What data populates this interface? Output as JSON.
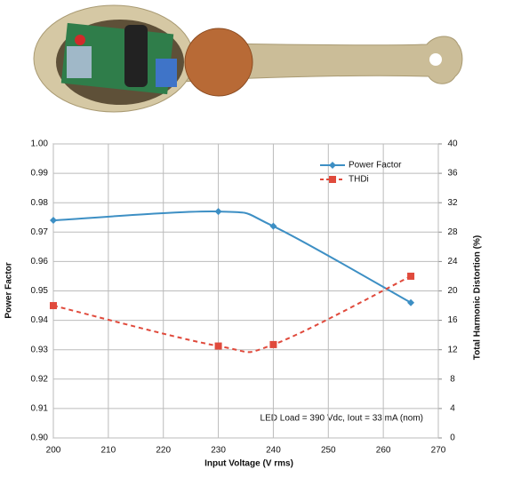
{
  "chart_data": {
    "type": "line",
    "x_label": "Input Voltage (V rms)",
    "y_label": "Power Factor",
    "y2_label": "Total Harmonic Distortion (%)",
    "annotation": "LED Load = 390 Vdc, Iout = 33 mA (nom)",
    "x": [
      200,
      230,
      240,
      265
    ],
    "series": [
      {
        "name": "Power Factor",
        "color": "#3d8fc4",
        "marker": "diamond",
        "dash": false,
        "values": [
          0.974,
          0.977,
          0.972,
          0.946
        ]
      },
      {
        "name": "THDi",
        "color": "#e04a3c",
        "marker": "square",
        "dash": true,
        "axis": "y2",
        "values": [
          18,
          12.5,
          12.7,
          22
        ]
      }
    ],
    "xlim": [
      200,
      270
    ],
    "xticks": [
      200,
      210,
      220,
      230,
      240,
      250,
      260,
      270
    ],
    "ylim": [
      0.9,
      1.0
    ],
    "yticks": [
      {
        "value": 0.9,
        "label": "0.90"
      },
      0.91,
      0.92,
      0.93,
      0.94,
      0.95,
      0.96,
      0.97,
      0.98,
      0.99,
      {
        "value": 1.0,
        "label": "1.00"
      }
    ],
    "y2lim": [
      0,
      40
    ],
    "y2ticks": [
      0,
      4,
      8,
      12,
      16,
      20,
      24,
      28,
      32,
      36,
      40
    ],
    "grid": true,
    "legend": "top-right"
  }
}
